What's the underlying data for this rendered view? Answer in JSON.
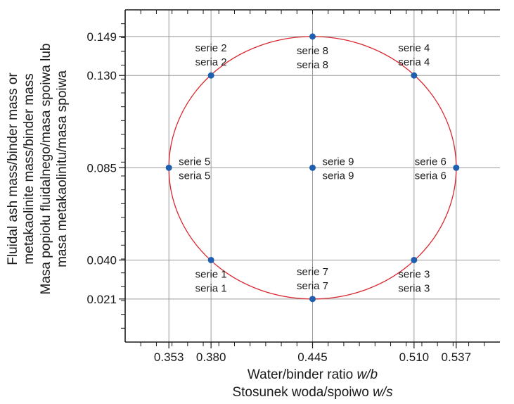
{
  "chart_data": {
    "type": "scatter",
    "title": "",
    "xlabel_lines": [
      {
        "pre": "Water/binder ratio ",
        "ital": "w/b"
      },
      {
        "pre": "Stosunek woda/spoiwo ",
        "ital": "w/s"
      }
    ],
    "ylabel_lines": [
      "Fluidal ash mass/binder mass or",
      "metakaolinite mass/binder mass",
      "Masa popiołu fluidalnego/masa spoiwa lub",
      "masa metakaolinitu/masa spoiwa"
    ],
    "x_ticks": [
      0.353,
      0.38,
      0.445,
      0.51,
      0.537
    ],
    "x_tick_labels": [
      "0.353",
      "0.380",
      "0.445",
      "0.510",
      "0.537"
    ],
    "y_ticks": [
      0.021,
      0.04,
      0.085,
      0.13,
      0.149
    ],
    "y_tick_labels": [
      "0.021",
      "0.040",
      "0.085",
      "0.130",
      "0.149"
    ],
    "xlim": [
      0.325,
      0.565
    ],
    "ylim": [
      0.0,
      0.162
    ],
    "grid": true,
    "point_color": "#1f5fb0",
    "circle_color": "#d8262e",
    "circle": {
      "cx": 0.445,
      "cy": 0.085,
      "rx": 0.092,
      "ry": 0.064
    },
    "points": [
      {
        "x": 0.38,
        "y": 0.04,
        "labels": [
          "serie 1",
          "seria 1"
        ],
        "pos": "below"
      },
      {
        "x": 0.38,
        "y": 0.13,
        "labels": [
          "serie 2",
          "seria 2"
        ],
        "pos": "above"
      },
      {
        "x": 0.51,
        "y": 0.04,
        "labels": [
          "serie 3",
          "seria 3"
        ],
        "pos": "below"
      },
      {
        "x": 0.51,
        "y": 0.13,
        "labels": [
          "serie 4",
          "seria 4"
        ],
        "pos": "above"
      },
      {
        "x": 0.353,
        "y": 0.085,
        "labels": [
          "serie 5",
          "seria 5"
        ],
        "pos": "right"
      },
      {
        "x": 0.537,
        "y": 0.085,
        "labels": [
          "serie 6",
          "seria 6"
        ],
        "pos": "left"
      },
      {
        "x": 0.445,
        "y": 0.021,
        "labels": [
          "serie 7",
          "seria 7"
        ],
        "pos": "above"
      },
      {
        "x": 0.445,
        "y": 0.149,
        "labels": [
          "serie 8",
          "seria 8"
        ],
        "pos": "below"
      },
      {
        "x": 0.445,
        "y": 0.085,
        "labels": [
          "serie 9",
          "seria 9"
        ],
        "pos": "right"
      }
    ]
  }
}
